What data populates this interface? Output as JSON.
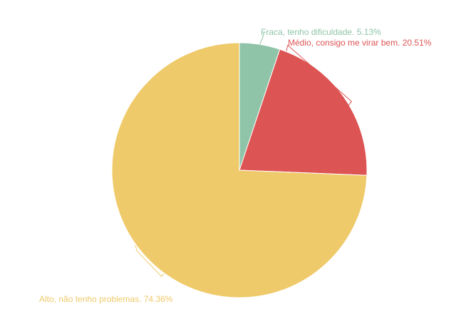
{
  "chart_data": {
    "type": "pie",
    "slices": [
      {
        "label": "Fraca, tenho dificuldade. 5.13%",
        "value": 5.13,
        "color": "#8fc4a8"
      },
      {
        "label": "Médio, consigo me virar bem. 20.51%",
        "value": 20.51,
        "color": "#dd5454"
      },
      {
        "label": "Alto, não tenho problemas. 74.36%",
        "value": 74.36,
        "color": "#efca6a"
      }
    ]
  }
}
